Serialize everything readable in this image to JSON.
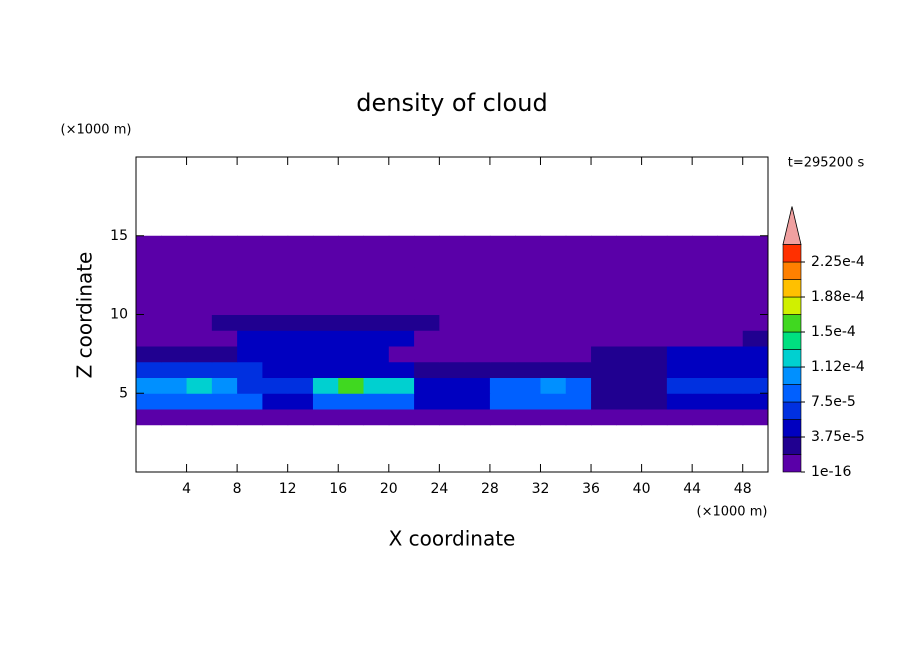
{
  "chart_data": {
    "type": "contour",
    "title": "density of cloud",
    "x_label": "X coordinate",
    "y_label": "Z coordinate",
    "x_unit": "(×1000 m)",
    "y_unit": "(×1000 m)",
    "time_label": "t=295200 s",
    "xlim": [
      0,
      50
    ],
    "ylim": [
      0,
      20
    ],
    "xticks": [
      4,
      8,
      12,
      16,
      20,
      24,
      28,
      32,
      36,
      40,
      44,
      48
    ],
    "yticks": [
      5,
      10,
      15
    ],
    "x": [
      1,
      3,
      5,
      7,
      9,
      11,
      13,
      15,
      17,
      19,
      21,
      23,
      25,
      27,
      29,
      31,
      33,
      35,
      37,
      39,
      41,
      43,
      45,
      47,
      49
    ],
    "y": [
      3.5,
      4.5,
      5.5,
      6.5,
      7.5,
      8.5,
      9.5,
      10.5,
      11.5,
      12.5,
      13.5,
      14.5
    ],
    "z": [
      [
        1e-05,
        1e-05,
        1e-05,
        1e-05,
        1e-05,
        1e-05,
        1e-05,
        1e-05,
        1e-05,
        1e-05,
        1e-05,
        1e-05,
        1e-05,
        1e-05,
        1e-05,
        1e-05,
        1e-05,
        1e-05,
        1e-05,
        1e-05,
        1e-05,
        1e-05,
        1e-05,
        1e-05,
        1e-05
      ],
      [
        8e-05,
        8e-05,
        8e-05,
        8e-05,
        8e-05,
        4e-05,
        4e-05,
        9e-05,
        9e-05,
        9e-05,
        9e-05,
        5e-05,
        5e-05,
        5e-05,
        8e-05,
        8e-05,
        8e-05,
        8e-05,
        2e-05,
        2e-05,
        2e-05,
        4e-05,
        4e-05,
        4e-05,
        4e-05
      ],
      [
        0.00011,
        0.00011,
        0.00012,
        0.00011,
        7e-05,
        7e-05,
        7e-05,
        0.00012,
        0.00016,
        0.00013,
        0.00012,
        5e-05,
        5e-05,
        5e-05,
        9e-05,
        9e-05,
        0.0001,
        9e-05,
        3e-05,
        3e-05,
        3e-05,
        6e-05,
        6e-05,
        6e-05,
        6e-05
      ],
      [
        6e-05,
        6e-05,
        6e-05,
        6e-05,
        6e-05,
        5e-05,
        5e-05,
        4e-05,
        4e-05,
        4e-05,
        4e-05,
        2e-05,
        2e-05,
        2e-05,
        2e-05,
        2e-05,
        2e-05,
        2e-05,
        2e-05,
        2e-05,
        2e-05,
        5e-05,
        5e-05,
        5e-05,
        5e-05
      ],
      [
        3e-05,
        2e-05,
        2e-05,
        2e-05,
        5e-05,
        5e-05,
        5e-05,
        5e-05,
        5e-05,
        5e-05,
        1e-05,
        1e-05,
        1e-05,
        1e-05,
        1e-05,
        1e-05,
        1e-05,
        1e-05,
        2e-05,
        2e-05,
        2e-05,
        4e-05,
        4e-05,
        4e-05,
        4e-05
      ],
      [
        1e-05,
        1e-05,
        1e-05,
        1e-05,
        5e-05,
        5e-05,
        5e-05,
        5e-05,
        5e-05,
        5e-05,
        5e-05,
        1e-05,
        1e-05,
        1e-05,
        1e-05,
        1e-05,
        1e-05,
        1e-05,
        1e-05,
        1e-05,
        1e-05,
        1e-05,
        1e-05,
        1e-05,
        3e-05
      ],
      [
        1e-05,
        1e-05,
        1e-05,
        2.5e-05,
        2.5e-05,
        2.5e-05,
        2.5e-05,
        2.5e-05,
        2.5e-05,
        2.5e-05,
        2.5e-05,
        2e-05,
        1e-05,
        1e-05,
        1e-05,
        1e-05,
        1e-05,
        1e-05,
        1e-05,
        1e-05,
        1e-05,
        1e-05,
        1e-05,
        1e-05,
        1e-05
      ],
      [
        1e-05,
        1e-05,
        1e-05,
        1e-05,
        1e-05,
        1e-05,
        1e-05,
        1e-05,
        1e-05,
        1e-05,
        1e-05,
        1e-05,
        1e-05,
        1e-05,
        1e-05,
        1e-05,
        1e-05,
        1e-05,
        1e-05,
        1e-05,
        1e-05,
        1e-05,
        1e-05,
        1e-05,
        1e-05
      ],
      [
        1e-05,
        1e-05,
        1e-05,
        1e-05,
        1e-05,
        1e-05,
        1e-05,
        1e-05,
        1e-05,
        1e-05,
        1e-05,
        1e-05,
        1e-05,
        1e-05,
        1e-05,
        1e-05,
        1e-05,
        1e-05,
        1e-05,
        1e-05,
        1e-05,
        1e-05,
        1e-05,
        1e-05,
        1e-05
      ],
      [
        1e-05,
        1e-05,
        1e-05,
        1e-05,
        1e-05,
        1e-05,
        1e-05,
        1e-05,
        1e-05,
        1e-05,
        1e-05,
        1e-05,
        1e-05,
        1e-05,
        1e-05,
        1e-05,
        1e-05,
        1e-05,
        1e-05,
        1e-05,
        1e-05,
        1e-05,
        1e-05,
        1e-05,
        1e-05
      ],
      [
        1e-05,
        1e-05,
        1e-05,
        1e-05,
        1e-05,
        1e-05,
        1e-05,
        1e-05,
        1e-05,
        1e-05,
        1e-05,
        1e-05,
        1e-05,
        1e-05,
        1e-05,
        1e-05,
        1e-05,
        1e-05,
        1e-05,
        1e-05,
        1e-05,
        1e-05,
        1e-05,
        1e-05,
        1e-05
      ],
      [
        1e-05,
        1e-05,
        1e-05,
        1e-05,
        1e-05,
        1e-05,
        1e-05,
        1e-05,
        1e-05,
        1e-05,
        1e-05,
        1e-05,
        1e-05,
        1e-05,
        1e-05,
        1e-05,
        1e-05,
        1e-05,
        1e-05,
        1e-05,
        1e-05,
        1e-05,
        1e-05,
        1e-05,
        1e-05
      ]
    ],
    "levels": [
      1e-16,
      1.875e-05,
      3.75e-05,
      5.625e-05,
      7.5e-05,
      9.375e-05,
      0.0001125,
      0.00013125,
      0.00015,
      0.00016875,
      0.0001875,
      0.00020625,
      0.000225,
      0.00024375
    ],
    "level_ticks": [
      {
        "value": 1e-16,
        "label": "1e-16"
      },
      {
        "value": 3.75e-05,
        "label": "3.75e-5"
      },
      {
        "value": 7.5e-05,
        "label": "7.5e-5"
      },
      {
        "value": 0.0001125,
        "label": "1.12e-4"
      },
      {
        "value": 0.00015,
        "label": "1.5e-4"
      },
      {
        "value": 0.0001875,
        "label": "1.88e-4"
      },
      {
        "value": 0.000225,
        "label": "2.25e-4"
      }
    ],
    "colors": [
      "#5a00a8",
      "#200090",
      "#0000c0",
      "#0030e0",
      "#0060ff",
      "#0090ff",
      "#00d0d0",
      "#00e080",
      "#40d820",
      "#d0f000",
      "#ffc000",
      "#ff8000",
      "#ff3000"
    ],
    "over_color": "#f0a0a0"
  }
}
